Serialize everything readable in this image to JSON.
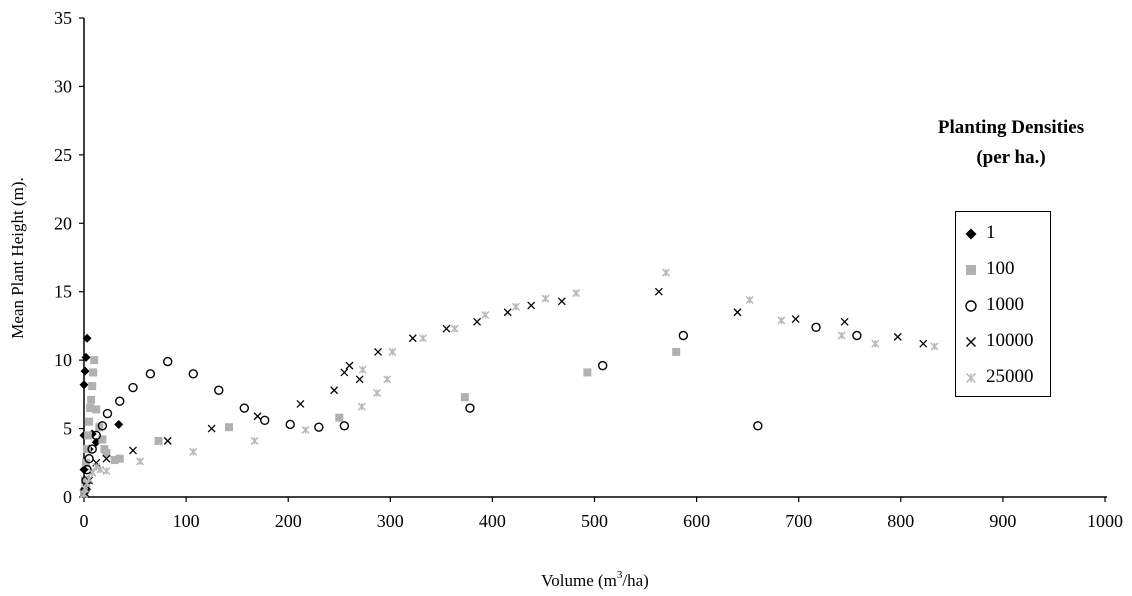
{
  "chart_data": {
    "type": "scatter",
    "title": "",
    "xlabel_prefix": "Volume (m",
    "xlabel_sup": "3",
    "xlabel_suffix": "/ha)",
    "ylabel": "Mean Plant Height (m).",
    "xlim": [
      0,
      1000
    ],
    "ylim": [
      0,
      35
    ],
    "x_ticks": [
      "0",
      "100",
      "200",
      "300",
      "400",
      "500",
      "600",
      "700",
      "800",
      "900",
      "1000"
    ],
    "y_ticks": [
      "0",
      "5",
      "10",
      "15",
      "20",
      "25",
      "30",
      "35"
    ],
    "grid": false,
    "legend_title_line1": "Planting Densities",
    "legend_title_line2": "(per ha.)",
    "legend_position": "right",
    "series": [
      {
        "name": "1",
        "marker": "diamond",
        "color": "#000000",
        "x": [
          0,
          0,
          0,
          0,
          1,
          2,
          3,
          5,
          8,
          12,
          34
        ],
        "y": [
          0.5,
          2,
          4.5,
          8.2,
          9.2,
          10.2,
          11.6,
          3.5,
          4.6,
          4.0,
          5.3
        ]
      },
      {
        "name": "100",
        "marker": "square",
        "color": "#b0b0b0",
        "x": [
          0,
          1,
          2,
          3,
          4,
          5,
          6,
          7,
          8,
          9,
          10,
          12,
          15,
          18,
          20,
          22,
          30,
          35,
          73,
          142,
          250,
          373,
          493,
          580
        ],
        "y": [
          0.3,
          1.2,
          2.5,
          3.5,
          4.5,
          5.5,
          6.5,
          7.1,
          8.1,
          9.1,
          10.0,
          6.4,
          5.1,
          4.2,
          3.5,
          3.2,
          2.7,
          2.8,
          4.1,
          5.1,
          5.8,
          7.3,
          9.1,
          10.6
        ]
      },
      {
        "name": "1000",
        "marker": "circle",
        "color": "#000000",
        "x": [
          1,
          2,
          3,
          5,
          8,
          12,
          18,
          23,
          35,
          48,
          65,
          82,
          107,
          132,
          157,
          177,
          202,
          230,
          255,
          378,
          508,
          587,
          660,
          717,
          757
        ],
        "y": [
          0.5,
          1.2,
          2.0,
          2.8,
          3.5,
          4.5,
          5.2,
          6.1,
          7.0,
          8.0,
          9.0,
          9.9,
          9.0,
          7.8,
          6.5,
          5.6,
          5.3,
          5.1,
          5.2,
          6.5,
          9.6,
          11.8,
          5.2,
          12.4,
          11.8
        ]
      },
      {
        "name": "10000",
        "marker": "x",
        "color": "#000000",
        "x": [
          1,
          3,
          5,
          8,
          12,
          22,
          48,
          82,
          125,
          170,
          212,
          245,
          255,
          260,
          270,
          288,
          322,
          355,
          385,
          415,
          438,
          468,
          563,
          640,
          697,
          745,
          797,
          822
        ],
        "y": [
          0.3,
          0.8,
          1.2,
          1.8,
          2.5,
          2.8,
          3.4,
          4.1,
          5.0,
          5.9,
          6.8,
          7.8,
          9.1,
          9.6,
          8.6,
          10.6,
          11.6,
          12.3,
          12.8,
          13.5,
          14.0,
          14.3,
          15.0,
          13.5,
          13.0,
          12.8,
          11.7,
          11.2
        ]
      },
      {
        "name": "25000",
        "marker": "asterisk",
        "color": "#b8b8b8",
        "x": [
          0,
          1,
          3,
          5,
          8,
          12,
          16,
          22,
          55,
          107,
          167,
          217,
          272,
          273,
          287,
          297,
          302,
          332,
          363,
          393,
          423,
          452,
          482,
          570,
          652,
          683,
          742,
          775,
          833
        ],
        "y": [
          0.2,
          0.6,
          1.0,
          1.3,
          1.8,
          2.2,
          2.0,
          1.9,
          2.6,
          3.3,
          4.1,
          4.9,
          6.6,
          9.3,
          7.6,
          8.6,
          10.6,
          11.6,
          12.3,
          13.3,
          13.9,
          14.5,
          14.9,
          16.4,
          14.4,
          12.9,
          11.8,
          11.2,
          11.0
        ]
      }
    ]
  }
}
